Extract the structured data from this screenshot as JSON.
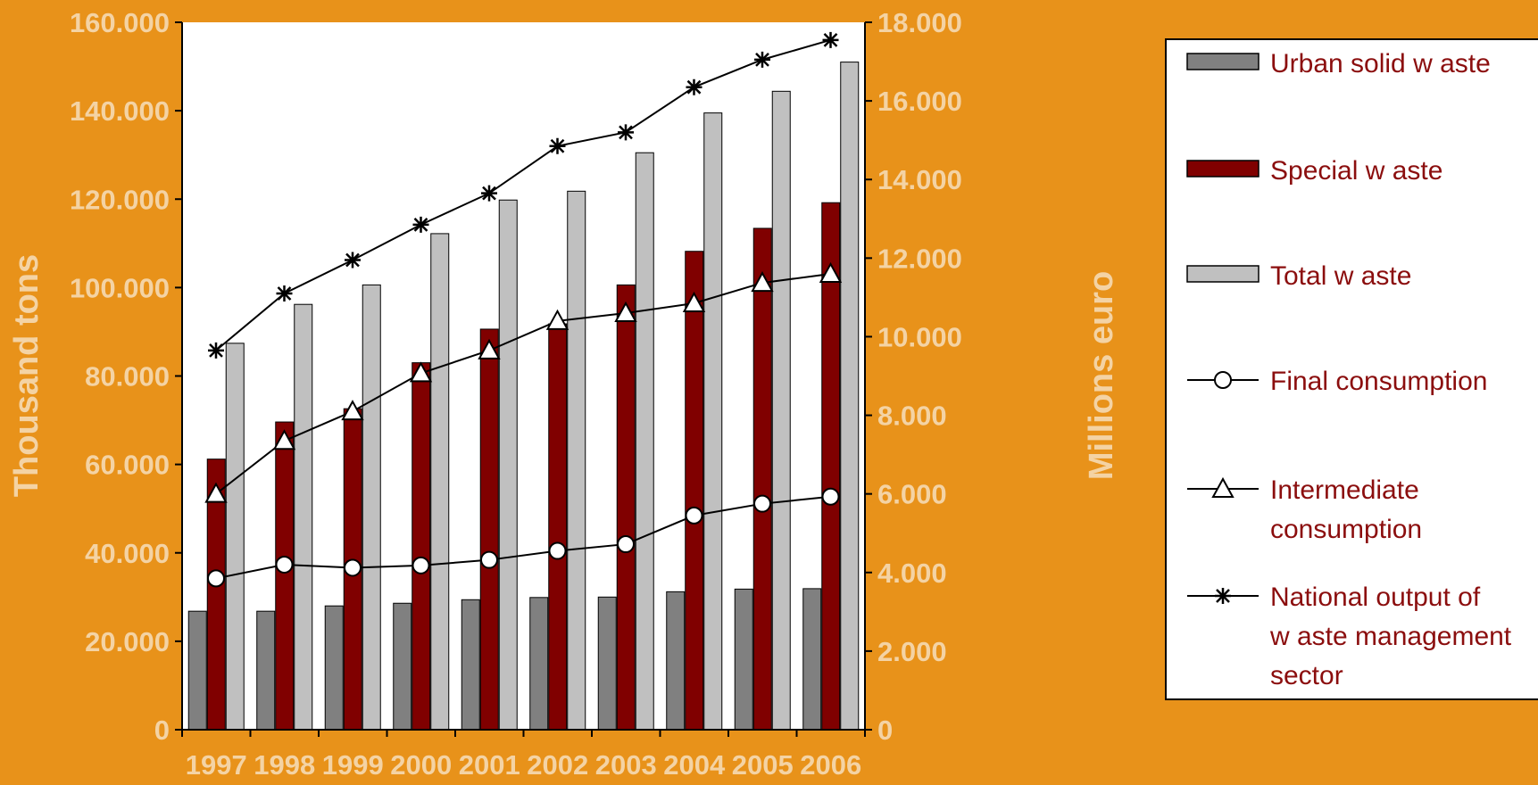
{
  "chart_data": {
    "type": "bar",
    "categories": [
      "1997",
      "1998",
      "1999",
      "2000",
      "2001",
      "2002",
      "2003",
      "2004",
      "2005",
      "2006"
    ],
    "y_left": {
      "label": "Thousand tons",
      "range": [
        0,
        160000
      ],
      "ticks": [
        0,
        20000,
        40000,
        60000,
        80000,
        100000,
        120000,
        140000,
        160000
      ],
      "tick_labels": [
        "0",
        "20.000",
        "40.000",
        "60.000",
        "80.000",
        "100.000",
        "120.000",
        "140.000",
        "160.000"
      ]
    },
    "y_right": {
      "label": "Millions euro",
      "range": [
        0,
        18000
      ],
      "ticks": [
        0,
        2000,
        4000,
        6000,
        8000,
        10000,
        12000,
        14000,
        16000,
        18000
      ],
      "tick_labels": [
        "0",
        "2.000",
        "4.000",
        "6.000",
        "8.000",
        "10.000",
        "12.000",
        "14.000",
        "16.000",
        "18.000"
      ]
    },
    "bar_series": [
      {
        "name": "Urban solid w aste",
        "color": "#808080",
        "axis": "left",
        "values": [
          26800,
          26800,
          28000,
          28600,
          29400,
          29900,
          30000,
          31200,
          31800,
          31900
        ]
      },
      {
        "name": "Special w aste",
        "color": "#800000",
        "axis": "left",
        "values": [
          61200,
          69600,
          72600,
          83000,
          90600,
          91800,
          100600,
          108200,
          113400,
          119200
        ]
      },
      {
        "name": "Total w aste",
        "color": "#C0C0C0",
        "axis": "left",
        "values": [
          87400,
          96200,
          100600,
          112200,
          119800,
          121800,
          130500,
          139500,
          144400,
          151000
        ]
      }
    ],
    "line_series": [
      {
        "name": "Final consumption",
        "marker": "circle",
        "axis": "right",
        "values": [
          3850,
          4200,
          4120,
          4180,
          4320,
          4550,
          4720,
          5450,
          5750,
          5930
        ]
      },
      {
        "name": "Intermediate consumption",
        "display_lines": [
          "Intermediate",
          "consumption"
        ],
        "marker": "triangle",
        "axis": "right",
        "values": [
          6000,
          7350,
          8100,
          9070,
          9650,
          10400,
          10600,
          10850,
          11370,
          11600
        ]
      },
      {
        "name": "National output of waste management sector",
        "display_lines": [
          "National output of",
          "w aste management",
          "sector"
        ],
        "marker": "star",
        "axis": "right",
        "values": [
          9650,
          11100,
          11950,
          12850,
          13650,
          14850,
          15200,
          16350,
          17050,
          17550
        ]
      }
    ],
    "grid": false,
    "legend": "right"
  }
}
